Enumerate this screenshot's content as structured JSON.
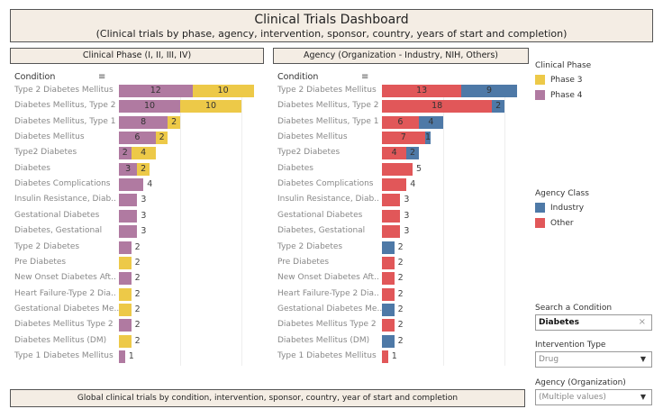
{
  "header": {
    "title": "Clinical Trials Dashboard",
    "subtitle": "(Clinical trials by phase, agency, intervention, sponsor, country, years of start and completion)"
  },
  "footer": "Global clinical trials by condition, intervention, sponsor, country, year of start and completion",
  "colors": {
    "phase3": "#edc948",
    "phase4": "#b07aa1",
    "industry": "#4e79a7",
    "other": "#e15759"
  },
  "chart_data": [
    {
      "type": "bar",
      "title": "Clinical Phase (I, II, III, IV)",
      "ylabel": "Condition",
      "orientation": "horizontal",
      "stacked": true,
      "xlim": [
        0,
        22
      ],
      "categories": [
        "Type 2 Diabetes Mellitus",
        "Diabetes Mellitus, Type 2",
        "Diabetes Mellitus, Type 1",
        "Diabetes Mellitus",
        "Type2 Diabetes",
        "Diabetes",
        "Diabetes Complications",
        "Insulin Resistance, Diab..",
        "Gestational Diabetes",
        "Diabetes, Gestational",
        "Type 2 Diabetes",
        "Pre Diabetes",
        "New Onset Diabetes Aft..",
        "Heart Failure-Type 2 Dia..",
        "Gestational Diabetes Me..",
        "Diabetes Mellitus Type 2",
        "Diabetes Mellitus (DM)",
        "Type 1 Diabetes Mellitus"
      ],
      "series": [
        {
          "name": "Phase 4",
          "values": [
            12,
            10,
            8,
            6,
            2,
            3,
            4,
            3,
            3,
            3,
            2,
            0,
            2,
            0,
            0,
            2,
            0,
            1
          ]
        },
        {
          "name": "Phase 3",
          "values": [
            10,
            10,
            2,
            2,
            4,
            2,
            0,
            0,
            0,
            0,
            0,
            2,
            0,
            2,
            2,
            0,
            2,
            0
          ]
        }
      ]
    },
    {
      "type": "bar",
      "title": "Agency (Organization - Industry, NIH, Others)",
      "ylabel": "Condition",
      "orientation": "horizontal",
      "stacked": true,
      "xlim": [
        0,
        22
      ],
      "categories": [
        "Type 2 Diabetes Mellitus",
        "Diabetes Mellitus, Type 2",
        "Diabetes Mellitus, Type 1",
        "Diabetes Mellitus",
        "Type2 Diabetes",
        "Diabetes",
        "Diabetes Complications",
        "Insulin Resistance, Diab..",
        "Gestational Diabetes",
        "Diabetes, Gestational",
        "Type 2 Diabetes",
        "Pre Diabetes",
        "New Onset Diabetes Aft..",
        "Heart Failure-Type 2 Dia..",
        "Gestational Diabetes Me..",
        "Diabetes Mellitus Type 2",
        "Diabetes Mellitus (DM)",
        "Type 1 Diabetes Mellitus"
      ],
      "series": [
        {
          "name": "Other",
          "values": [
            13,
            18,
            6,
            7,
            4,
            5,
            4,
            3,
            3,
            3,
            0,
            2,
            2,
            2,
            0,
            2,
            0,
            1
          ]
        },
        {
          "name": "Industry",
          "values": [
            9,
            2,
            4,
            1,
            2,
            0,
            0,
            0,
            0,
            0,
            2,
            0,
            0,
            0,
            2,
            0,
            2,
            0
          ]
        }
      ]
    }
  ],
  "legend_phase": {
    "title": "Clinical Phase",
    "items": [
      "Phase 3",
      "Phase 4"
    ]
  },
  "legend_agency": {
    "title": "Agency Class",
    "items": [
      "Industry",
      "Other"
    ]
  },
  "filters": {
    "search_label": "Search a Condition",
    "search_value": "Diabetes",
    "intervention_label": "Intervention Type",
    "intervention_value": "Drug",
    "agency_label": "Agency (Organization)",
    "agency_value": "(Multiple values)"
  }
}
